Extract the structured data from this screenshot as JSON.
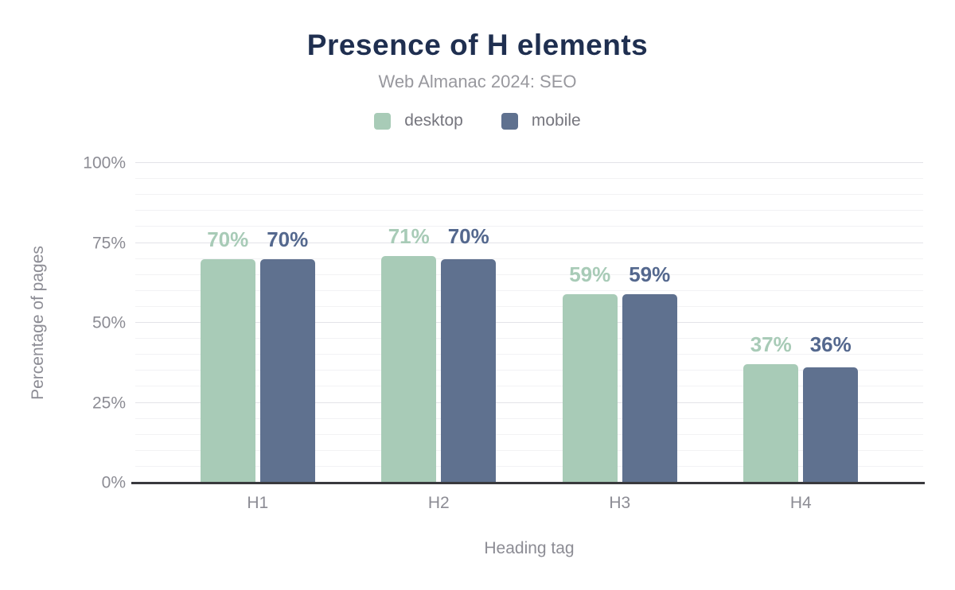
{
  "title": "Presence of H elements",
  "subtitle": "Web Almanac 2024: SEO",
  "legend": [
    {
      "label": "desktop",
      "color": "#a8cbb7"
    },
    {
      "label": "mobile",
      "color": "#5f718f"
    }
  ],
  "axes": {
    "y_title": "Percentage of pages",
    "x_title": "Heading tag",
    "y_ticks": [
      {
        "value": 100,
        "label": "100%"
      },
      {
        "value": 75,
        "label": "75%"
      },
      {
        "value": 50,
        "label": "50%"
      },
      {
        "value": 25,
        "label": "25%"
      },
      {
        "value": 0,
        "label": "0%"
      }
    ]
  },
  "chart_data": {
    "type": "bar",
    "title": "Presence of H elements",
    "subtitle": "Web Almanac 2024: SEO",
    "xlabel": "Heading tag",
    "ylabel": "Percentage of pages",
    "categories": [
      "H1",
      "H2",
      "H3",
      "H4"
    ],
    "series": [
      {
        "name": "desktop",
        "color": "#a8cbb7",
        "label_color": "#a8cbb7",
        "values": [
          70,
          71,
          59,
          37
        ]
      },
      {
        "name": "mobile",
        "color": "#5f718f",
        "label_color": "#54688e",
        "values": [
          70,
          70,
          59,
          36
        ]
      }
    ],
    "ylim": [
      0,
      100
    ],
    "y_major_step": 25,
    "y_minor_step": 5,
    "grid": true,
    "legend_position": "top",
    "value_suffix": "%",
    "data_labels": true
  },
  "colors": {
    "title_text": "#1f2f50",
    "subtitle_text": "#98989e",
    "legend_text": "#76767e",
    "axis_text": "#8c8c94",
    "grid_major": "#e3e3e8",
    "grid_minor": "#f2f2f4",
    "baseline": "#39393d",
    "background": "#ffffff"
  }
}
